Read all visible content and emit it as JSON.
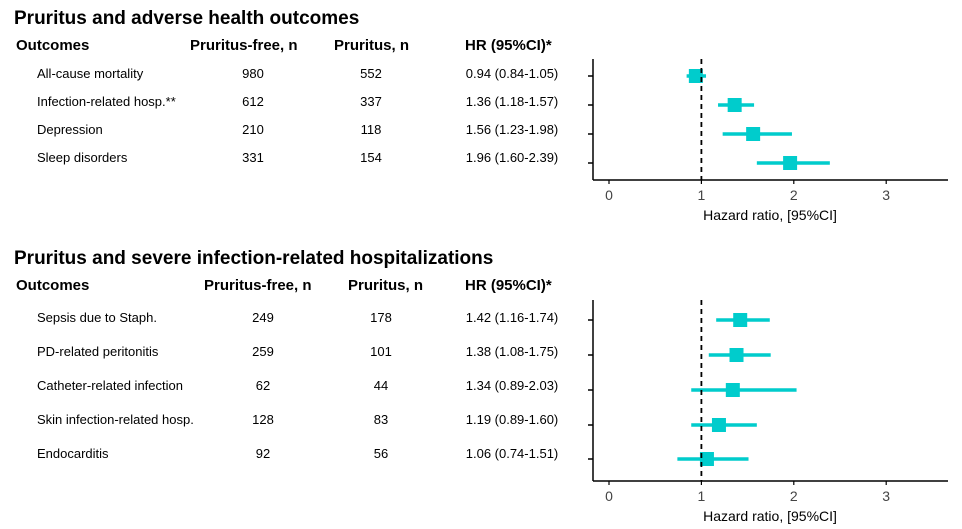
{
  "colors": {
    "marker": "#00CCCC",
    "axis": "#000000",
    "reference_line": "#000000"
  },
  "chart_data": [
    {
      "type": "forest",
      "title": "Pruritus and adverse health outcomes",
      "columns": [
        "Outcomes",
        "Pruritus-free, n",
        "Pruritus, n",
        "HR (95%CI)*"
      ],
      "rows": [
        {
          "outcome": "All-cause mortality",
          "free_n": "980",
          "pruritus_n": "552",
          "hr_text": "0.94 (0.84-1.05)",
          "hr": 0.94,
          "lo": 0.84,
          "hi": 1.05
        },
        {
          "outcome": "Infection-related hosp.**",
          "free_n": "612",
          "pruritus_n": "337",
          "hr_text": "1.36 (1.18-1.57)",
          "hr": 1.36,
          "lo": 1.18,
          "hi": 1.57
        },
        {
          "outcome": "Depression",
          "free_n": "210",
          "pruritus_n": "118",
          "hr_text": "1.56 (1.23-1.98)",
          "hr": 1.56,
          "lo": 1.23,
          "hi": 1.98
        },
        {
          "outcome": "Sleep disorders",
          "free_n": "331",
          "pruritus_n": "154",
          "hr_text": "1.96 (1.60-2.39)",
          "hr": 1.96,
          "lo": 1.6,
          "hi": 2.39
        }
      ],
      "xlabel": "Hazard ratio, [95%CI]",
      "xticks": [
        "0",
        "1",
        "2",
        "3"
      ],
      "xlim": [
        -0.17,
        3.66
      ],
      "reference_line": 1,
      "grid": false
    },
    {
      "type": "forest",
      "title": "Pruritus and severe infection-related hospitalizations",
      "columns": [
        "Outcomes",
        "Pruritus-free, n",
        "Pruritus, n",
        "HR (95%CI)*"
      ],
      "rows": [
        {
          "outcome": "Sepsis due to Staph.",
          "free_n": "249",
          "pruritus_n": "178",
          "hr_text": "1.42 (1.16-1.74)",
          "hr": 1.42,
          "lo": 1.16,
          "hi": 1.74
        },
        {
          "outcome": "PD-related peritonitis",
          "free_n": "259",
          "pruritus_n": "101",
          "hr_text": "1.38 (1.08-1.75)",
          "hr": 1.38,
          "lo": 1.08,
          "hi": 1.75
        },
        {
          "outcome": "Catheter-related infection",
          "free_n": "62",
          "pruritus_n": "44",
          "hr_text": "1.34 (0.89-2.03)",
          "hr": 1.34,
          "lo": 0.89,
          "hi": 2.03
        },
        {
          "outcome": "Skin infection-related hosp.",
          "free_n": "128",
          "pruritus_n": "83",
          "hr_text": "1.19 (0.89-1.60)",
          "hr": 1.19,
          "lo": 0.89,
          "hi": 1.6
        },
        {
          "outcome": "Endocarditis",
          "free_n": "92",
          "pruritus_n": "56",
          "hr_text": "1.06 (0.74-1.51)",
          "hr": 1.06,
          "lo": 0.74,
          "hi": 1.51
        }
      ],
      "xlabel": "Hazard ratio, [95%CI]",
      "xticks": [
        "0",
        "1",
        "2",
        "3"
      ],
      "xlim": [
        -0.17,
        3.66
      ],
      "reference_line": 1,
      "grid": false
    }
  ]
}
